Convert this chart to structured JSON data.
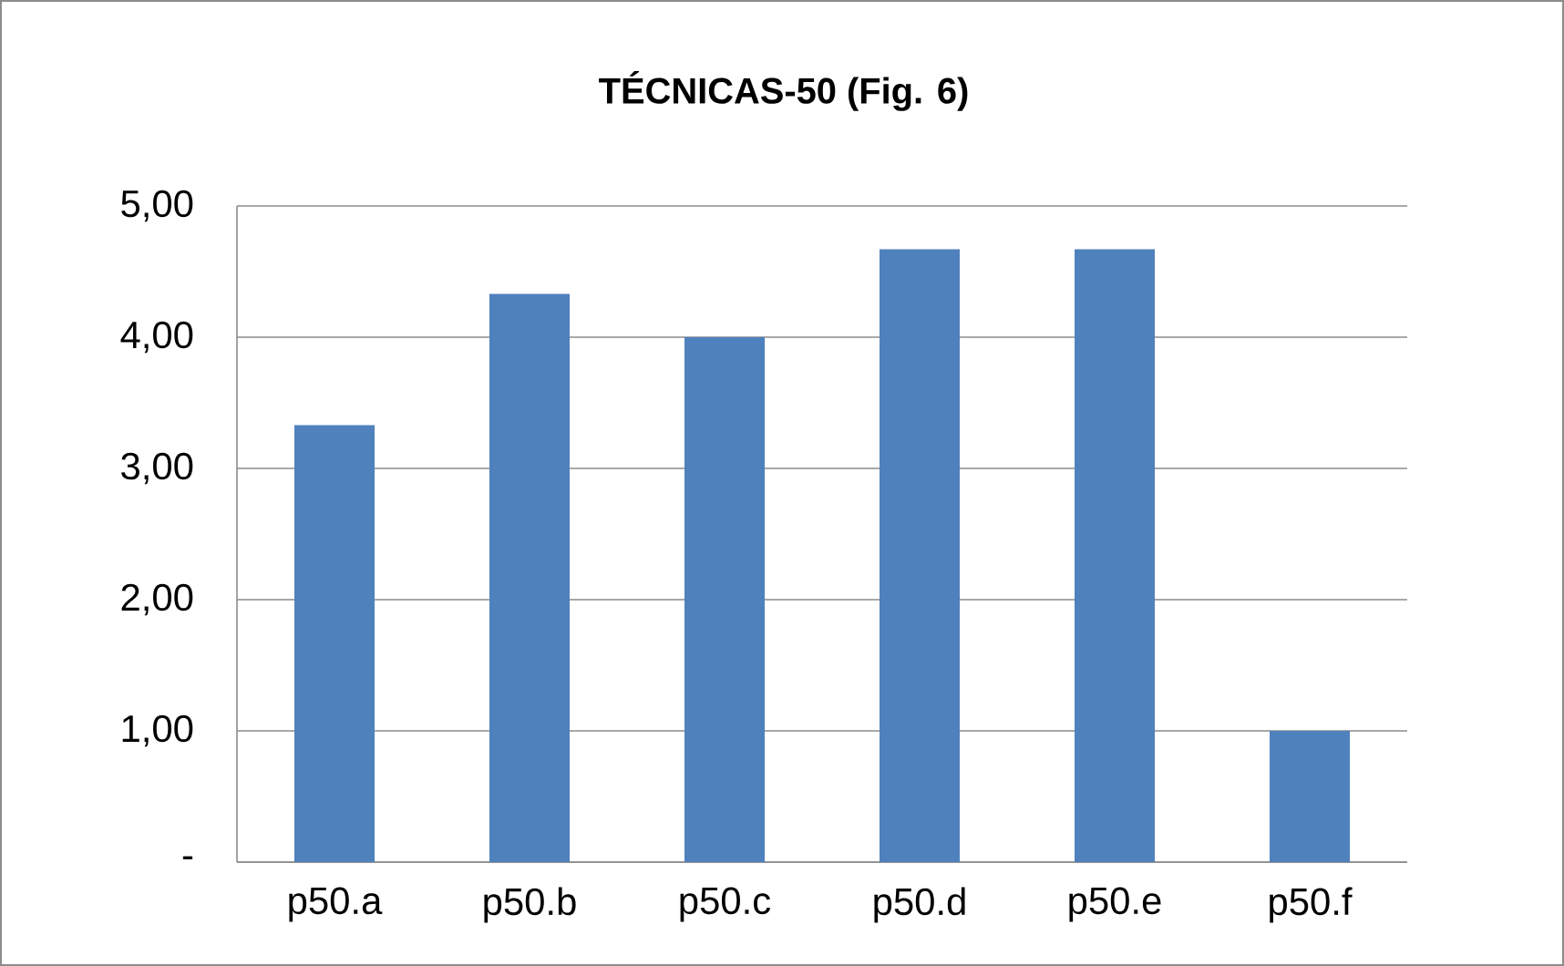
{
  "chart_data": {
    "type": "bar",
    "title": "TÉCNICAS-50 (Fig. 6)",
    "categories": [
      "p50.a",
      "p50.b",
      "p50.c",
      "p50.d",
      "p50.e",
      "p50.f"
    ],
    "values": [
      3.33,
      4.33,
      4.0,
      4.67,
      4.67,
      1.0
    ],
    "color": "#4f81bd",
    "ylim": [
      0,
      5
    ],
    "yticks": [
      {
        "value": 0,
        "label": "-"
      },
      {
        "value": 1,
        "label": "1,00"
      },
      {
        "value": 2,
        "label": "2,00"
      },
      {
        "value": 3,
        "label": "3,00"
      },
      {
        "value": 4,
        "label": "4,00"
      },
      {
        "value": 5,
        "label": "5,00"
      }
    ],
    "grid": "y"
  }
}
